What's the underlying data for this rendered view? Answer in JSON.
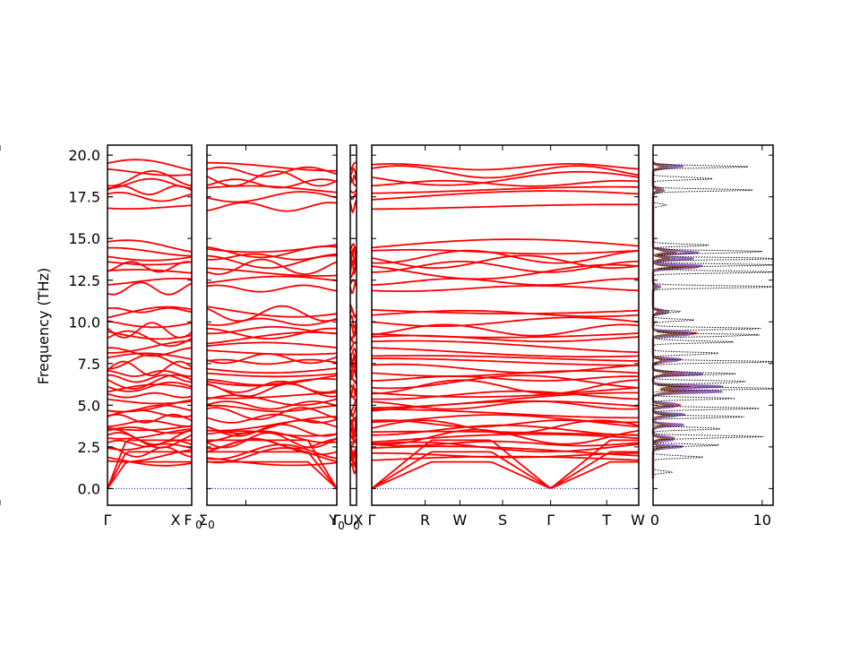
{
  "chart_data": {
    "type": "line",
    "title": "",
    "ylabel": "Frequency (THz)",
    "ylim": [
      -1.0,
      20.6
    ],
    "y_ticks": [
      0.0,
      2.5,
      5.0,
      7.5,
      10.0,
      12.5,
      15.0,
      17.5,
      20.0
    ],
    "y_tick_labels": [
      "0.0",
      "2.5",
      "5.0",
      "7.5",
      "10.0",
      "12.5",
      "15.0",
      "17.5",
      "20.0"
    ],
    "band_color": "#ff0000",
    "zero_line_color": "#0000cc",
    "band_levels": [
      0.0,
      1.0,
      1.3,
      1.7,
      2.0,
      2.2,
      2.5,
      2.7,
      2.9,
      3.1,
      3.3,
      3.5,
      3.7,
      3.9,
      4.2,
      4.5,
      4.8,
      5.0,
      5.3,
      5.6,
      5.9,
      6.1,
      6.4,
      6.6,
      6.9,
      7.2,
      7.6,
      7.8,
      8.2,
      8.5,
      9.0,
      9.3,
      9.5,
      10.0,
      10.5,
      10.7,
      12.0,
      12.4,
      13.0,
      13.3,
      13.6,
      13.9,
      14.2,
      14.5,
      16.9,
      17.5,
      17.9,
      18.3,
      18.6,
      19.0,
      19.3
    ],
    "band_segments": [
      {
        "labels": [
          "Γ",
          "X"
        ],
        "x": [
          0,
          1
        ]
      },
      {
        "labels": [
          "F",
          "Σ",
          "Γ",
          "Y"
        ],
        "x": [
          0,
          0.3,
          1
        ]
      },
      {
        "labels": [
          "U",
          "X"
        ],
        "x": [
          0,
          1
        ]
      },
      {
        "labels": [
          "Γ",
          "R",
          "W",
          "S",
          "Γ",
          "T",
          "W"
        ],
        "x": [
          0,
          0.2,
          0.33,
          0.49,
          0.67,
          0.88,
          1
        ]
      }
    ],
    "dos": {
      "xlim": [
        0,
        11
      ],
      "x_ticks": [
        0,
        10
      ],
      "x_tick_labels": [
        "0",
        "10"
      ],
      "total_color": "#000000",
      "partial_colors": [
        "#1f77b4",
        "#ff7f0e",
        "#2ca02c",
        "#d62728",
        "#9467bd",
        "#8c564b"
      ],
      "total_peaks": [
        {
          "freq": 1.0,
          "value": 1.5
        },
        {
          "freq": 1.9,
          "value": 4.6
        },
        {
          "freq": 2.6,
          "value": 5.4
        },
        {
          "freq": 3.1,
          "value": 10.3
        },
        {
          "freq": 3.6,
          "value": 7.0
        },
        {
          "freq": 4.3,
          "value": 7.4
        },
        {
          "freq": 4.8,
          "value": 9.2
        },
        {
          "freq": 5.4,
          "value": 6.6
        },
        {
          "freq": 6.0,
          "value": 10.6
        },
        {
          "freq": 6.4,
          "value": 9.8
        },
        {
          "freq": 6.9,
          "value": 7.6
        },
        {
          "freq": 7.6,
          "value": 10.2
        },
        {
          "freq": 8.1,
          "value": 6.3
        },
        {
          "freq": 8.8,
          "value": 6.6
        },
        {
          "freq": 9.2,
          "value": 10.5
        },
        {
          "freq": 9.6,
          "value": 8.6
        },
        {
          "freq": 10.1,
          "value": 3.4
        },
        {
          "freq": 10.6,
          "value": 2.6
        },
        {
          "freq": 12.1,
          "value": 10.3
        },
        {
          "freq": 13.0,
          "value": 10.8
        },
        {
          "freq": 13.4,
          "value": 10.9
        },
        {
          "freq": 13.8,
          "value": 10.6
        },
        {
          "freq": 14.2,
          "value": 10.9
        },
        {
          "freq": 14.6,
          "value": 4.5
        },
        {
          "freq": 17.0,
          "value": 1.2
        },
        {
          "freq": 17.9,
          "value": 8.1
        },
        {
          "freq": 18.6,
          "value": 5.9
        },
        {
          "freq": 19.3,
          "value": 7.8
        }
      ],
      "partial_peaks": [
        {
          "freq": 2.5,
          "value": 2.4
        },
        {
          "freq": 3.0,
          "value": 3.0
        },
        {
          "freq": 3.8,
          "value": 2.6
        },
        {
          "freq": 4.4,
          "value": 3.3
        },
        {
          "freq": 5.0,
          "value": 3.6
        },
        {
          "freq": 5.8,
          "value": 5.6
        },
        {
          "freq": 6.1,
          "value": 6.0
        },
        {
          "freq": 6.9,
          "value": 4.8
        },
        {
          "freq": 7.7,
          "value": 3.1
        },
        {
          "freq": 9.3,
          "value": 5.9
        },
        {
          "freq": 10.6,
          "value": 1.9
        },
        {
          "freq": 12.1,
          "value": 0.6
        },
        {
          "freq": 13.3,
          "value": 6.1
        },
        {
          "freq": 13.8,
          "value": 3.4
        },
        {
          "freq": 14.2,
          "value": 4.9
        },
        {
          "freq": 17.9,
          "value": 1.4
        },
        {
          "freq": 19.3,
          "value": 2.9
        }
      ]
    }
  }
}
